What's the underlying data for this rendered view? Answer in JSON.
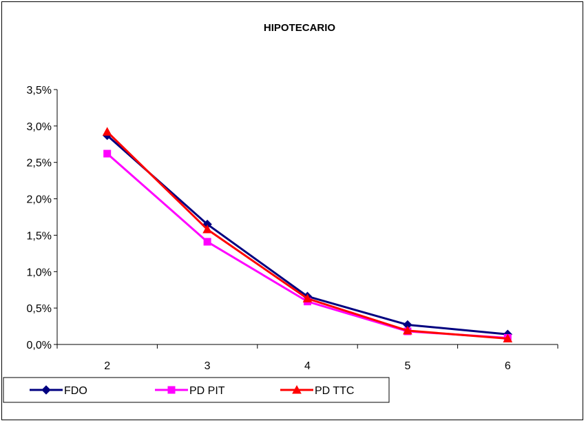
{
  "chart_data": {
    "type": "line",
    "title": "HIPOTECARIO",
    "xlabel": "",
    "ylabel": "",
    "categories": [
      "2",
      "3",
      "4",
      "5",
      "6"
    ],
    "y_ticks": [
      "0,0%",
      "0,5%",
      "1,0%",
      "1,5%",
      "2,0%",
      "2,5%",
      "3,0%",
      "3,5%"
    ],
    "ylim": [
      0,
      3.5
    ],
    "grid": false,
    "legend_position": "bottom-left",
    "series": [
      {
        "name": "FDO",
        "values": [
          2.87,
          1.65,
          0.66,
          0.27,
          0.14
        ],
        "color": "#000080",
        "marker": "diamond"
      },
      {
        "name": "PD PIT",
        "values": [
          2.62,
          1.41,
          0.59,
          0.18,
          0.09
        ],
        "color": "#FF00FF",
        "marker": "square"
      },
      {
        "name": "PD TTC",
        "values": [
          2.92,
          1.58,
          0.63,
          0.19,
          0.08
        ],
        "color": "#FF0000",
        "marker": "triangle"
      }
    ]
  }
}
